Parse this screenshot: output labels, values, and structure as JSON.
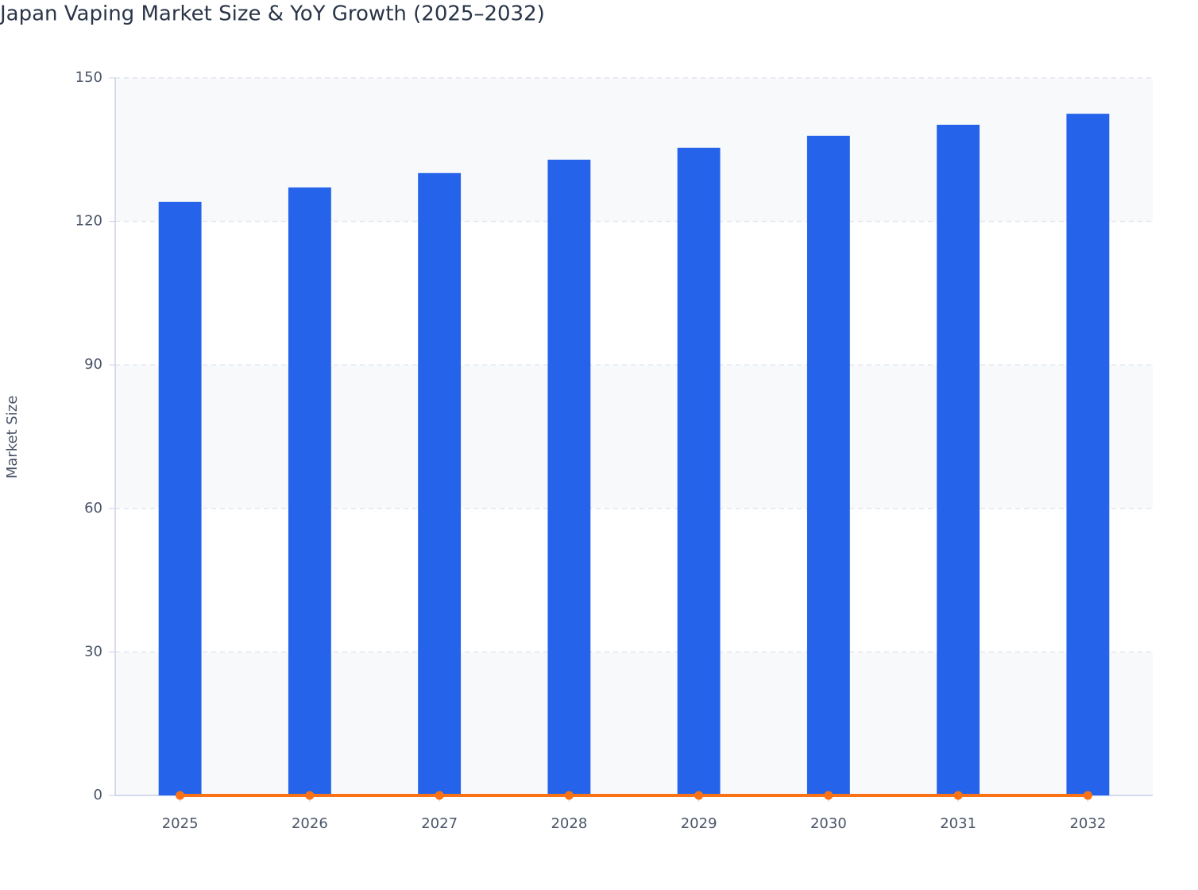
{
  "chart_data": {
    "type": "bar",
    "title": "Japan Vaping Market Size & YoY Growth (2025–2032)",
    "y_label": "Market Size",
    "categories": [
      "2025",
      "2026",
      "2027",
      "2028",
      "2029",
      "2030",
      "2031",
      "2032"
    ],
    "series": [
      {
        "type": "bar",
        "color": "#2563eb",
        "values": [
          124.1,
          127.1,
          130.1,
          132.9,
          135.4,
          137.9,
          140.2,
          142.5
        ]
      },
      {
        "type": "line",
        "color": "#f97316",
        "values": [
          0,
          0,
          0,
          0,
          0,
          0,
          0,
          0
        ]
      }
    ],
    "ylim": [
      0,
      150
    ],
    "yticks": [
      0,
      30,
      60,
      90,
      120,
      150
    ],
    "grid": true
  }
}
